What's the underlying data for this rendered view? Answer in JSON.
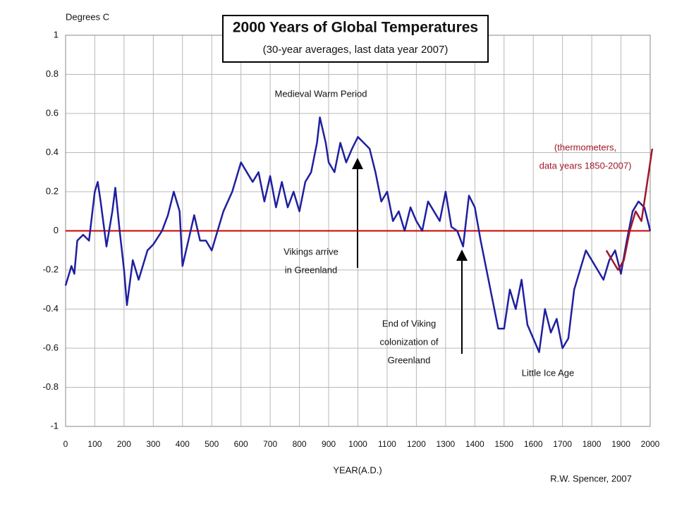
{
  "chart_data": {
    "type": "line",
    "title": "2000 Years of Global Temperatures",
    "subtitle": "(30-year averages, last data year 2007)",
    "y_label": "Degrees C",
    "x_label": "YEAR(A.D.)",
    "credit": "R.W. Spencer, 2007",
    "xlim": [
      0,
      2000
    ],
    "ylim": [
      -1,
      1
    ],
    "xticks": [
      0,
      100,
      200,
      300,
      400,
      500,
      600,
      700,
      800,
      900,
      1000,
      1100,
      1200,
      1300,
      1400,
      1500,
      1600,
      1700,
      1800,
      1900,
      2000
    ],
    "yticks": [
      1,
      0.8,
      0.6,
      0.4,
      0.2,
      0,
      -0.2,
      -0.4,
      -0.6,
      -0.8,
      -1
    ],
    "grid": true,
    "reference_line": {
      "value": 0,
      "color": "#cc0000"
    },
    "series": [
      {
        "color": "#1f1fa0",
        "x": [
          0,
          20,
          30,
          40,
          60,
          80,
          100,
          110,
          120,
          140,
          160,
          170,
          185,
          200,
          210,
          230,
          250,
          280,
          300,
          330,
          350,
          370,
          390,
          400,
          420,
          440,
          460,
          480,
          500,
          520,
          540,
          570,
          600,
          620,
          640,
          660,
          680,
          700,
          720,
          740,
          760,
          780,
          800,
          820,
          840,
          860,
          870,
          890,
          900,
          920,
          940,
          960,
          980,
          1000,
          1020,
          1040,
          1060,
          1080,
          1100,
          1120,
          1140,
          1160,
          1180,
          1200,
          1220,
          1240,
          1260,
          1280,
          1300,
          1320,
          1340,
          1360,
          1380,
          1400,
          1420,
          1440,
          1460,
          1480,
          1500,
          1520,
          1540,
          1560,
          1580,
          1600,
          1620,
          1640,
          1660,
          1680,
          1700,
          1720,
          1740,
          1760,
          1780,
          1800,
          1820,
          1840,
          1860,
          1880,
          1900,
          1920,
          1940,
          1960,
          1980,
          2000
        ],
        "values": [
          -0.28,
          -0.18,
          -0.22,
          -0.05,
          -0.02,
          -0.05,
          0.2,
          0.25,
          0.15,
          -0.08,
          0.1,
          0.22,
          0.0,
          -0.2,
          -0.38,
          -0.15,
          -0.25,
          -0.1,
          -0.07,
          0.0,
          0.08,
          0.2,
          0.1,
          -0.18,
          -0.05,
          0.08,
          -0.05,
          -0.05,
          -0.1,
          0.0,
          0.1,
          0.2,
          0.35,
          0.3,
          0.25,
          0.3,
          0.15,
          0.28,
          0.12,
          0.25,
          0.12,
          0.2,
          0.1,
          0.25,
          0.3,
          0.45,
          0.58,
          0.45,
          0.35,
          0.3,
          0.45,
          0.35,
          0.42,
          0.48,
          0.45,
          0.42,
          0.3,
          0.15,
          0.2,
          0.05,
          0.1,
          0.0,
          0.12,
          0.05,
          0.0,
          0.15,
          0.1,
          0.05,
          0.2,
          0.02,
          0.0,
          -0.08,
          0.18,
          0.12,
          -0.05,
          -0.2,
          -0.35,
          -0.5,
          -0.5,
          -0.3,
          -0.4,
          -0.25,
          -0.48,
          -0.55,
          -0.62,
          -0.4,
          -0.52,
          -0.45,
          -0.6,
          -0.55,
          -0.3,
          -0.2,
          -0.1,
          -0.15,
          -0.2,
          -0.25,
          -0.15,
          -0.1,
          -0.22,
          -0.05,
          0.1,
          0.15,
          0.12,
          0.0
        ]
      },
      {
        "color": "#a01828",
        "x": [
          1850,
          1870,
          1890,
          1910,
          1930,
          1950,
          1970,
          1990,
          2007
        ],
        "values": [
          -0.1,
          -0.15,
          -0.2,
          -0.15,
          0.0,
          0.1,
          0.05,
          0.25,
          0.42
        ]
      }
    ],
    "annotations": [
      {
        "lines": [
          "Medieval Warm Period"
        ]
      },
      {
        "lines": [
          "Vikings arrive",
          "in Greenland"
        ]
      },
      {
        "lines": [
          "End of Viking",
          "colonization of",
          "Greenland"
        ]
      },
      {
        "lines": [
          "Little Ice Age"
        ]
      },
      {
        "lines": [
          "(thermometers,",
          "data years 1850-2007)"
        ],
        "color": "#a01828"
      }
    ]
  }
}
